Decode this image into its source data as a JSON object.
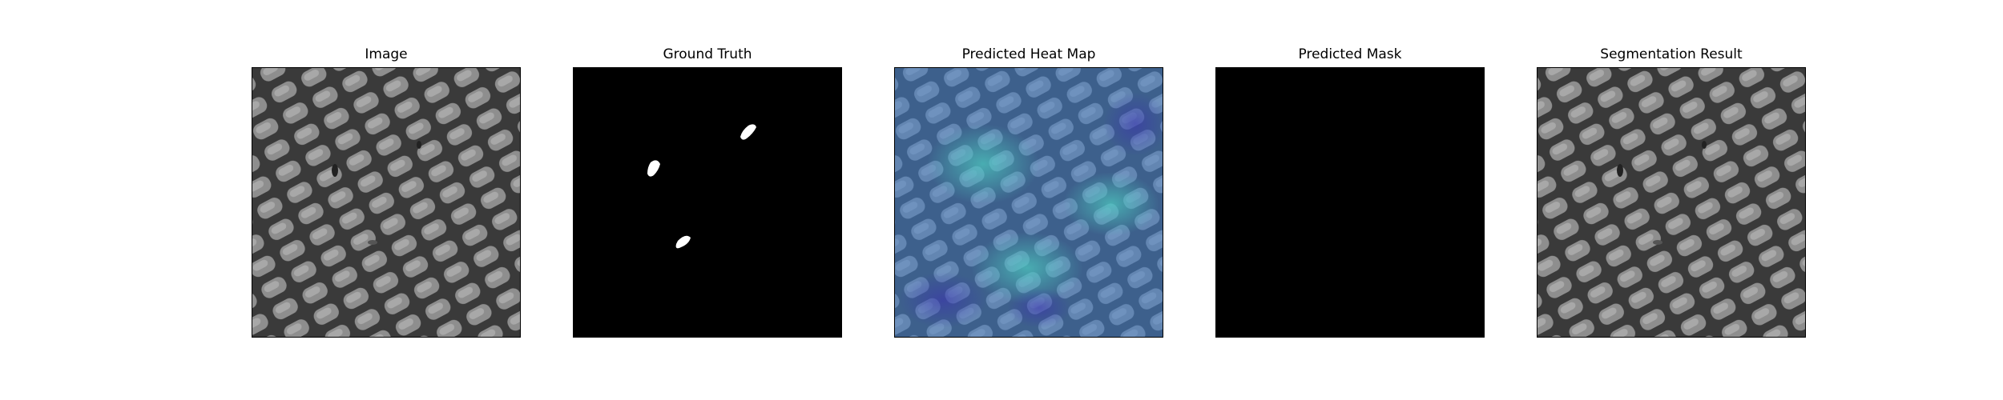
{
  "figure": {
    "panels": [
      {
        "id": "image",
        "title": "Image"
      },
      {
        "id": "ground-truth",
        "title": "Ground Truth"
      },
      {
        "id": "heatmap",
        "title": "Predicted Heat Map"
      },
      {
        "id": "mask",
        "title": "Predicted Mask"
      },
      {
        "id": "segmentation",
        "title": "Segmentation Result"
      }
    ]
  },
  "colors": {
    "background": "#ffffff",
    "mesh_dark": "#3a3a3a",
    "mesh_cell": "#8a8a8a",
    "mask_bg": "#000000",
    "mask_fg": "#ffffff",
    "heat_tint": "#3f7fd0",
    "heat_hot": "#4fd6c6"
  }
}
